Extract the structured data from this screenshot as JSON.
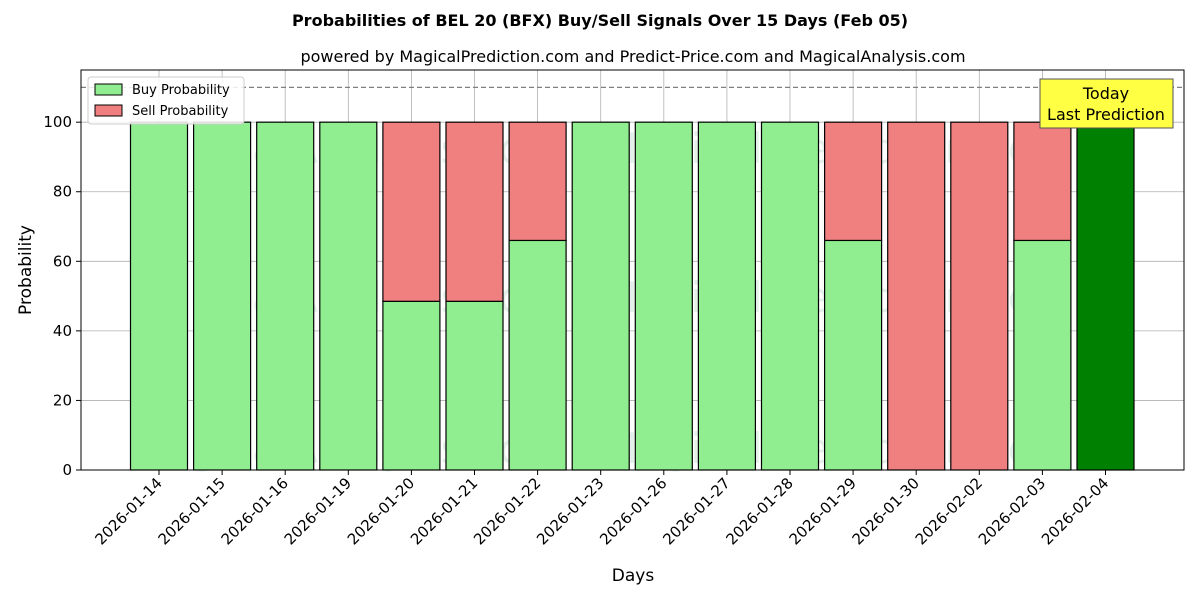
{
  "chart_data": {
    "type": "bar",
    "title": "Probabilities of BEL 20 (BFX) Buy/Sell Signals Over 15 Days (Feb 05)",
    "subtitle": "powered by MagicalPrediction.com and Predict-Price.com and MagicalAnalysis.com",
    "xlabel": "Days",
    "ylabel": "Probability",
    "ylim": [
      0,
      115
    ],
    "yticks": [
      0,
      20,
      40,
      60,
      80,
      100
    ],
    "grid": true,
    "legend_position": "top-left",
    "reference_line": 110,
    "categories": [
      "2026-01-14",
      "2026-01-15",
      "2026-01-16",
      "2026-01-19",
      "2026-01-20",
      "2026-01-21",
      "2026-01-22",
      "2026-01-23",
      "2026-01-26",
      "2026-01-27",
      "2026-01-28",
      "2026-01-29",
      "2026-01-30",
      "2026-02-02",
      "2026-02-03",
      "2026-02-04"
    ],
    "series": [
      {
        "name": "Buy Probability",
        "color": "#90ee90",
        "values": [
          100,
          100,
          100,
          100,
          48.5,
          48.5,
          66,
          100,
          100,
          100,
          100,
          66,
          0,
          0,
          66,
          100
        ]
      },
      {
        "name": "Sell Probability",
        "color": "#f08080",
        "values": [
          0,
          0,
          0,
          0,
          51.5,
          51.5,
          34,
          0,
          0,
          0,
          0,
          34,
          100,
          100,
          34,
          0
        ]
      }
    ],
    "highlight_color": "#008000",
    "annotation": {
      "line1": "Today",
      "line2": "Last Prediction",
      "background": "#ffff44"
    },
    "watermarks": [
      "MagicalAnalysis.com",
      "MagicalPrediction.com"
    ]
  }
}
